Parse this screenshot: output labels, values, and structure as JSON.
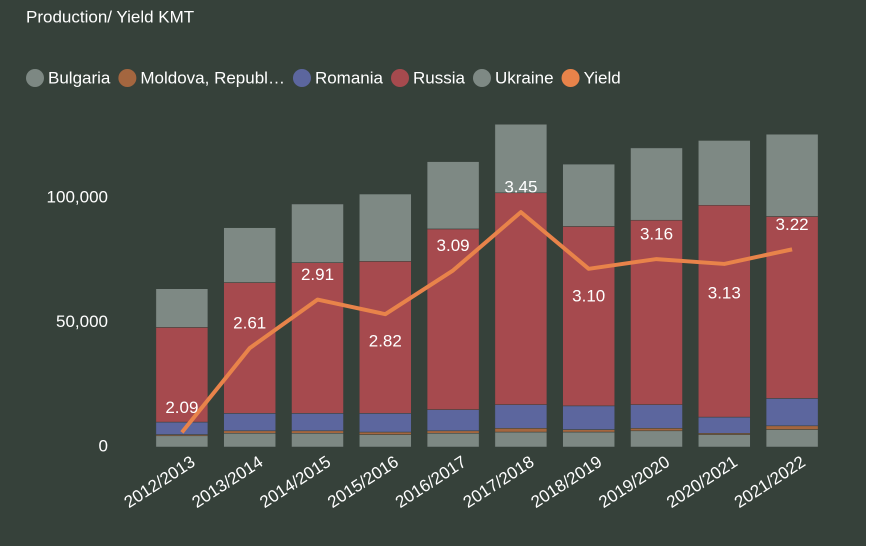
{
  "chart_data": {
    "type": "bar",
    "title": "Production/ Yield KMT",
    "categories": [
      "2012/2013",
      "2013/2014",
      "2014/2015",
      "2015/2016",
      "2016/2017",
      "2017/2018",
      "2018/2019",
      "2019/2020",
      "2020/2021",
      "2021/2022"
    ],
    "stacked": true,
    "series": [
      {
        "name": "Bulgaria",
        "color": "#7d8883",
        "values": [
          4500,
          5500,
          5500,
          5000,
          5500,
          6000,
          6000,
          6500,
          5000,
          7000
        ]
      },
      {
        "name": "Moldova, Republ…",
        "color": "#a4663f",
        "values": [
          500,
          1000,
          1000,
          1000,
          1000,
          1500,
          1000,
          1000,
          500,
          1500
        ]
      },
      {
        "name": "Romania",
        "color": "#5c669e",
        "values": [
          5000,
          7000,
          7000,
          7500,
          8500,
          9500,
          9500,
          9500,
          6500,
          11000
        ]
      },
      {
        "name": "Russia",
        "color": "#a64a4e",
        "values": [
          38000,
          52500,
          60500,
          61000,
          72500,
          85000,
          72000,
          74000,
          85000,
          73000
        ]
      },
      {
        "name": "Ukraine",
        "color": "#7e8984",
        "values": [
          15500,
          22000,
          23500,
          27000,
          27000,
          27500,
          25000,
          29000,
          26000,
          33000
        ]
      },
      {
        "name": "Yield",
        "color": "#e8834a",
        "type": "line",
        "axis": "y2",
        "values": [
          2.09,
          2.61,
          2.91,
          2.82,
          3.09,
          3.45,
          3.1,
          3.16,
          3.13,
          3.22
        ],
        "value_labels": [
          "2.09",
          "2.61",
          "2.91",
          "2.82",
          "3.09",
          "3.45",
          "3.10",
          "3.16",
          "3.13",
          "3.22"
        ]
      }
    ],
    "ylim": [
      0,
      130000
    ],
    "yticks": [
      {
        "value": 0,
        "label": "0"
      },
      {
        "value": 50000,
        "label": "50,000"
      },
      {
        "value": 100000,
        "label": "100,000"
      }
    ],
    "y2lim": [
      2,
      4
    ],
    "y2ticks": [
      2,
      3,
      4
    ],
    "grid": false,
    "legend": "top"
  }
}
